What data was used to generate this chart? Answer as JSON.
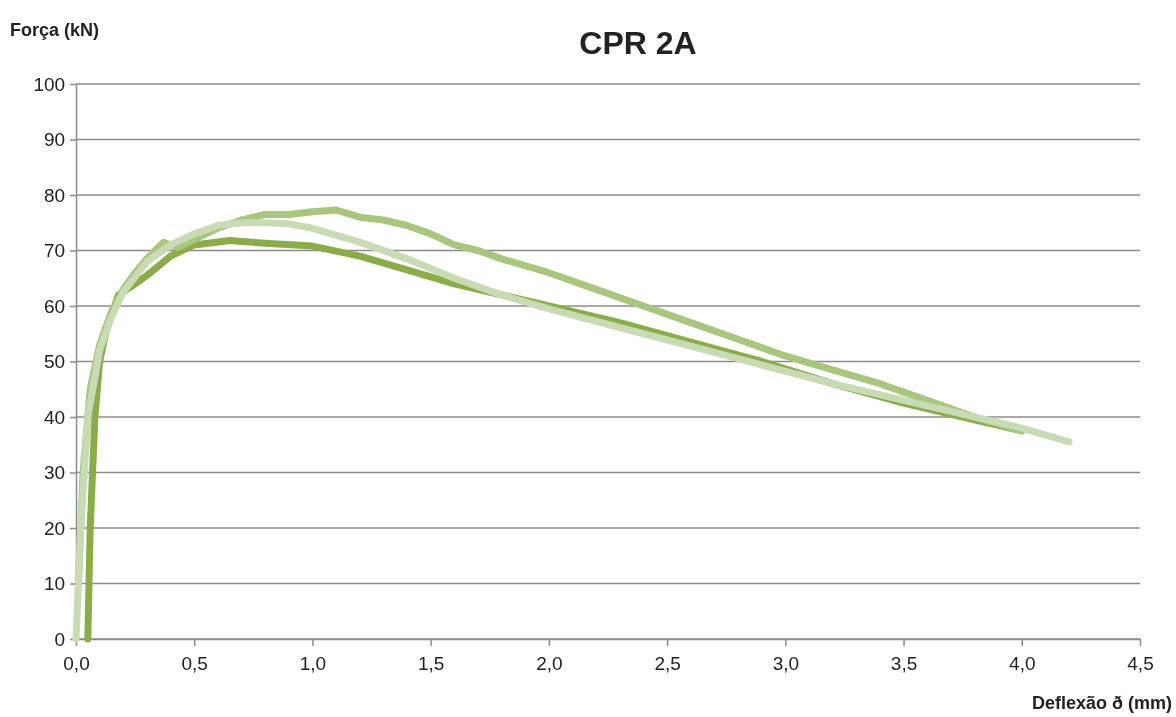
{
  "chart_data": {
    "type": "line",
    "title": "CPR 2A",
    "xlabel": "Deflexão ð (mm)",
    "ylabel": "Força (kN)",
    "xlim": [
      0,
      4.5
    ],
    "ylim": [
      0,
      100
    ],
    "xticks": [
      {
        "value": 0,
        "label": "0,0"
      },
      {
        "value": 0.5,
        "label": "0,5"
      },
      {
        "value": 1,
        "label": "1,0"
      },
      {
        "value": 1.5,
        "label": "1,5"
      },
      {
        "value": 2,
        "label": "2,0"
      },
      {
        "value": 2.5,
        "label": "2,5"
      },
      {
        "value": 3,
        "label": "3,0"
      },
      {
        "value": 3.5,
        "label": "3,5"
      },
      {
        "value": 4,
        "label": "4,0"
      },
      {
        "value": 4.5,
        "label": "4,5"
      }
    ],
    "yticks": [
      0,
      10,
      20,
      30,
      40,
      50,
      60,
      70,
      80,
      90,
      100
    ],
    "grid": "y",
    "marker": "none",
    "line_style": "solid",
    "series": [
      {
        "color": "#8aad4a",
        "x": [
          0.05,
          0.06,
          0.08,
          0.1,
          0.13,
          0.18,
          0.25,
          0.3,
          0.4,
          0.5,
          0.65,
          0.8,
          1.0,
          1.2,
          1.4,
          1.6,
          1.8,
          2.0,
          2.3,
          2.6,
          2.9,
          3.2,
          3.5,
          3.8,
          4.0
        ],
        "values": [
          0,
          20,
          40,
          50,
          56,
          62,
          64,
          65.5,
          69,
          71,
          71.8,
          71.3,
          70.8,
          69,
          66.5,
          64,
          62,
          60,
          57,
          53.5,
          50,
          46,
          42.5,
          39.5,
          37.5
        ]
      },
      {
        "color": "#a8c67e",
        "x": [
          0.01,
          0.03,
          0.06,
          0.1,
          0.15,
          0.2,
          0.25,
          0.3,
          0.37,
          0.43,
          0.5,
          0.6,
          0.7,
          0.8,
          0.9,
          1.0,
          1.1,
          1.2,
          1.3,
          1.4,
          1.5,
          1.6,
          1.7,
          1.8,
          2.0,
          2.2,
          2.4,
          2.6,
          2.8,
          3.0,
          3.2,
          3.4,
          3.6,
          3.8,
          4.0
        ],
        "values": [
          10,
          30,
          45,
          53,
          59,
          63,
          66,
          68.5,
          71.5,
          70.5,
          72,
          74,
          75.5,
          76.5,
          76.5,
          77,
          77.3,
          76,
          75.5,
          74.5,
          73,
          71,
          70,
          68.5,
          66,
          63,
          60,
          57,
          54,
          51,
          48.5,
          46,
          43,
          40,
          37.5
        ]
      },
      {
        "color": "#c8dbb5",
        "x": [
          0,
          0.02,
          0.05,
          0.1,
          0.15,
          0.2,
          0.3,
          0.4,
          0.5,
          0.6,
          0.7,
          0.8,
          0.9,
          1.0,
          1.2,
          1.4,
          1.6,
          1.8,
          2.0,
          2.4,
          2.8,
          3.2,
          3.6,
          4.0,
          4.2
        ],
        "values": [
          0,
          20,
          40,
          52,
          58,
          62.5,
          68,
          71,
          73,
          74.5,
          75,
          75,
          74.8,
          74,
          71.5,
          68.5,
          65,
          62,
          59.5,
          55,
          50.5,
          46,
          42,
          38,
          35.5
        ]
      }
    ]
  }
}
